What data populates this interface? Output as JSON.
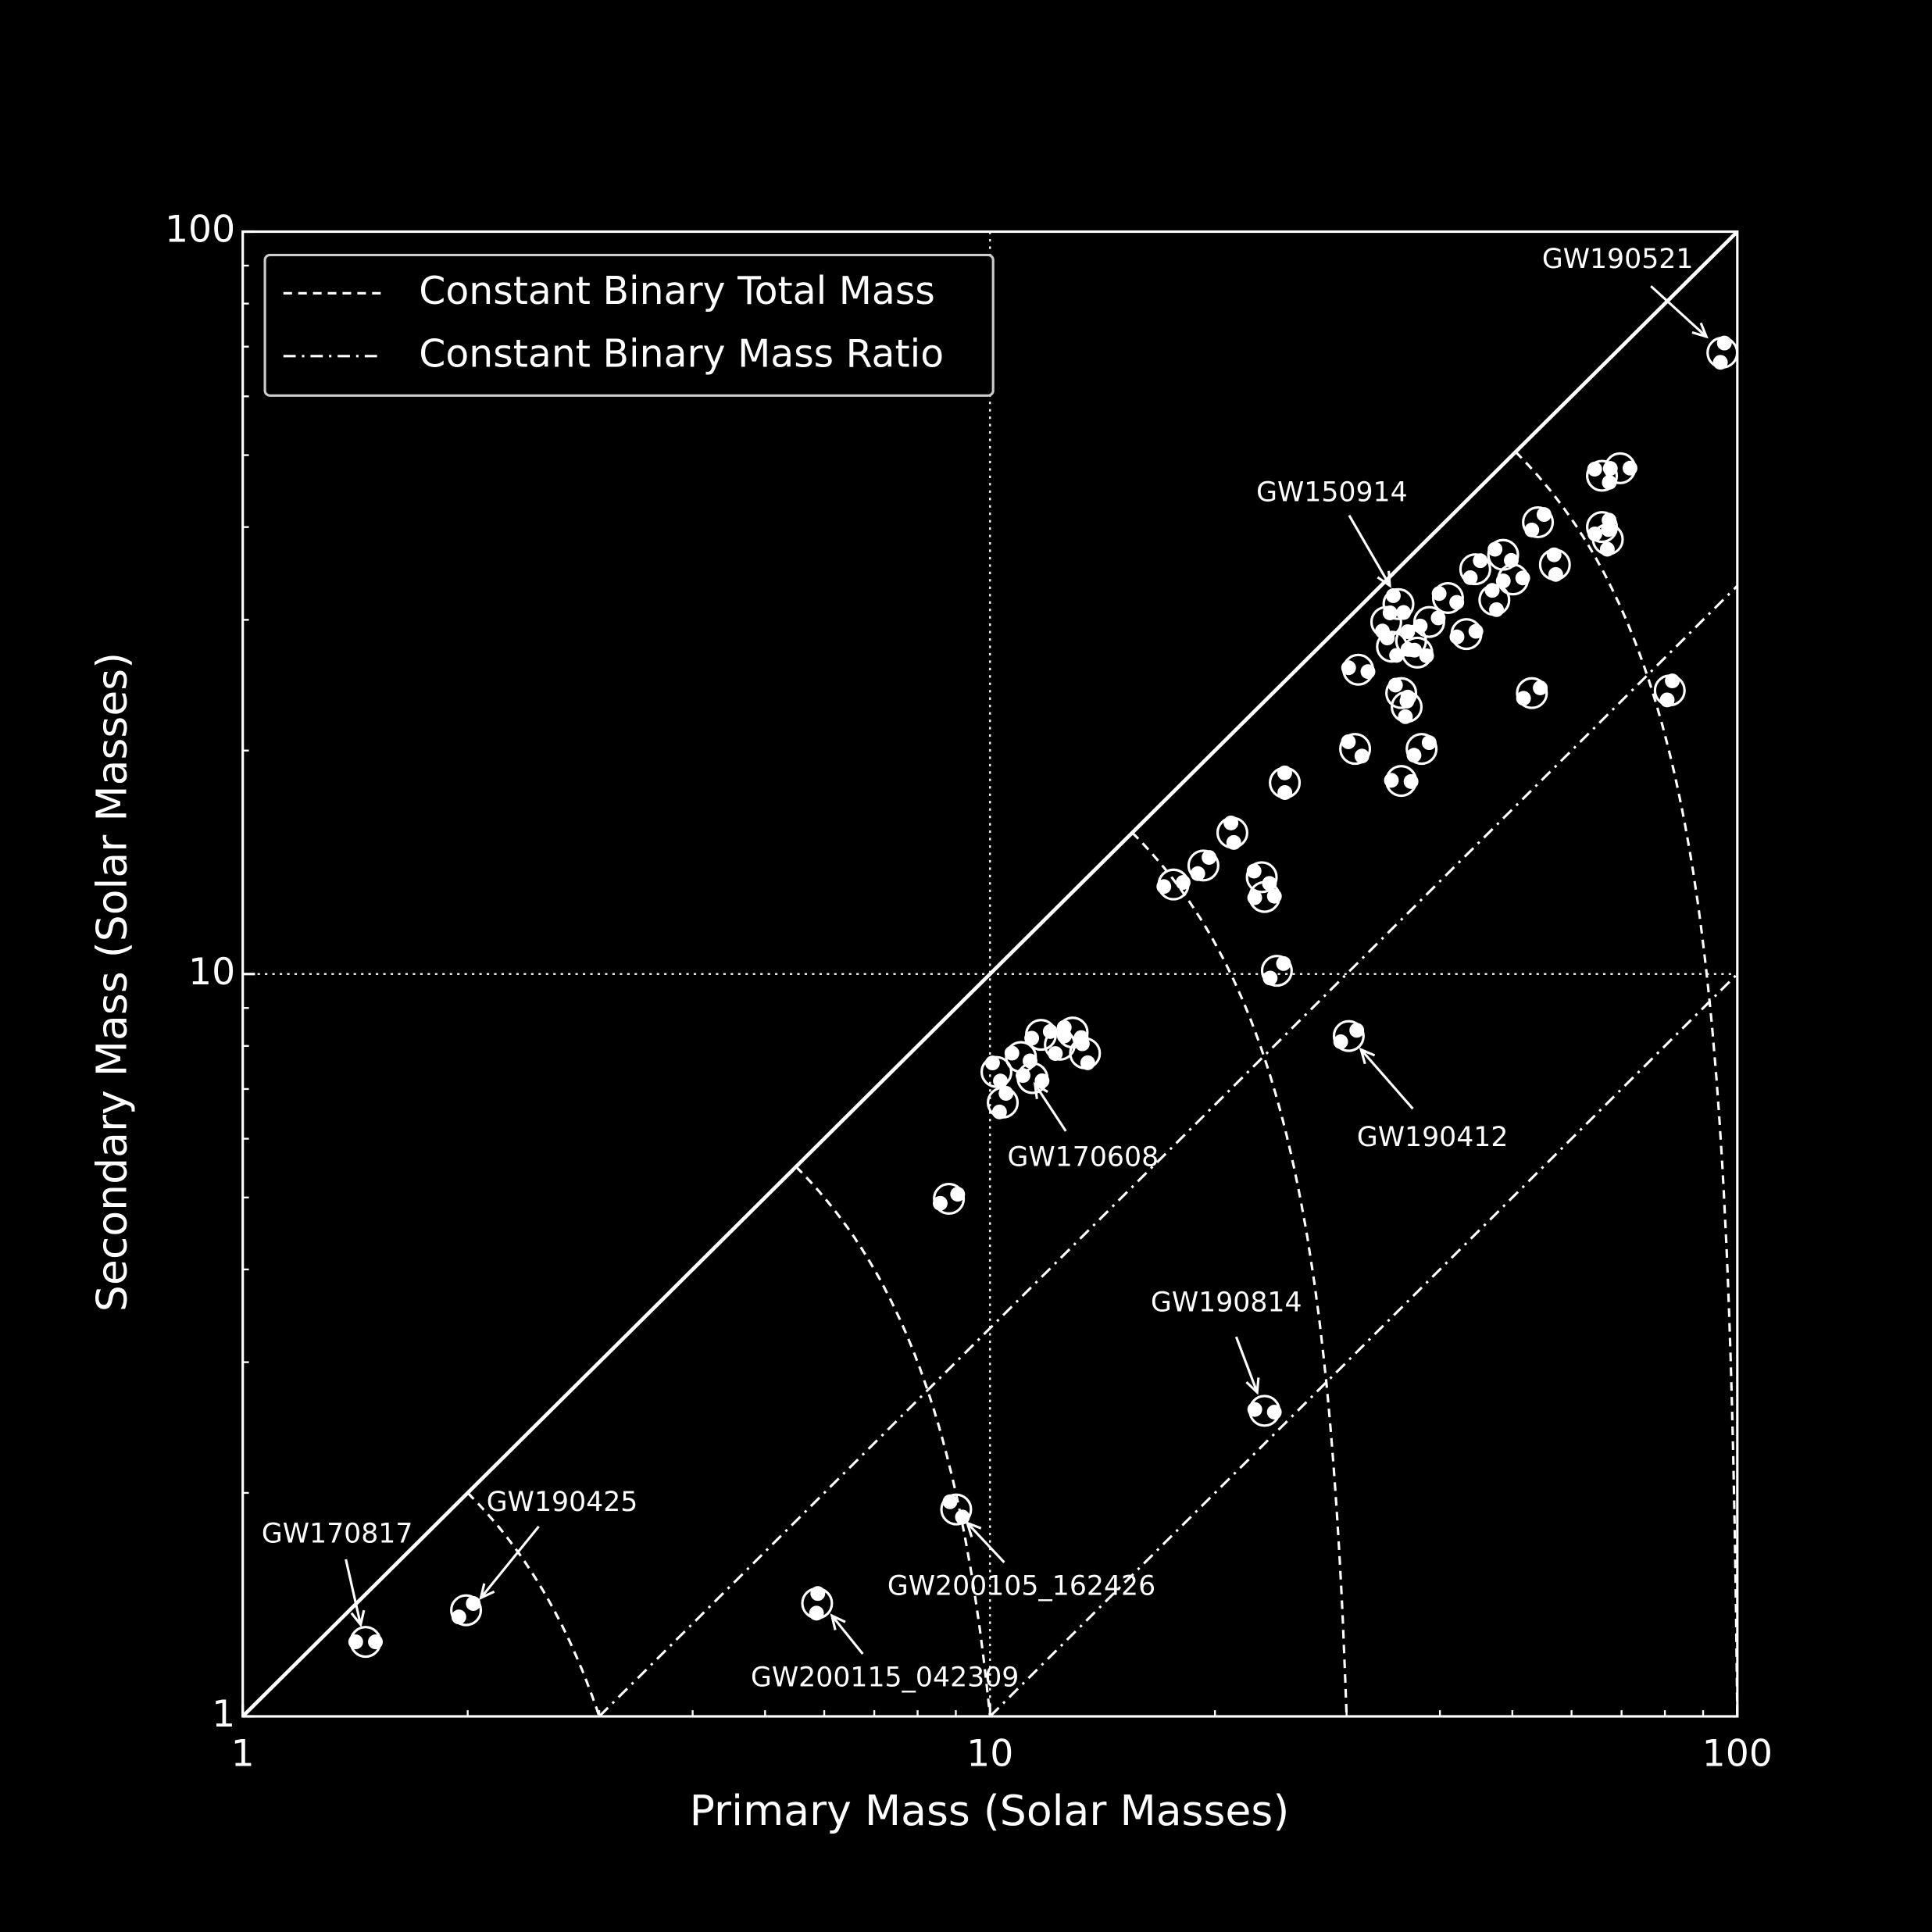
{
  "chart_data": {
    "type": "scatter",
    "xlabel": "Primary Mass (Solar Masses)",
    "ylabel": "Secondary Mass (Solar Masses)",
    "xlim": [
      1,
      100
    ],
    "ylim": [
      1,
      100
    ],
    "xticks": [
      1,
      10,
      100
    ],
    "yticks": [
      1,
      10,
      100
    ],
    "log_x": true,
    "log_y": true,
    "grid": true,
    "color": "#ffffff",
    "legend_loc": "upper left",
    "legend": [
      "Constant Binary Total Mass",
      "Constant Binary Mass Ratio"
    ],
    "total_mass_lines": [
      4,
      11,
      31,
      101
    ],
    "mass_ratio_lines": [
      3,
      10
    ],
    "x": [
      1.46,
      1.99,
      5.87,
      9.01,
      23.3,
      30.2,
      95.5,
      35.2,
      11.4,
      8.81,
      10.4,
      10.2,
      11.0,
      11.7,
      12.4,
      13.4,
      12.9,
      17.6,
      19.3,
      21.1,
      23.1,
      23.3,
      24.2,
      24.8,
      30.8,
      35.5,
      37.8,
      36.1,
      35.5,
      31.1,
      53.1,
      81.2,
      34.5,
      37.3,
      38.7,
      33.9,
      36.6,
      41.0,
      43.4,
      44.6,
      47.3,
      48.6,
      50.1,
      54.1,
      57.0,
      65.9,
      69.7,
      65.9,
      67.1
    ],
    "y": [
      1.26,
      1.39,
      1.42,
      1.9,
      2.58,
      8.25,
      68.7,
      31.5,
      7.24,
      4.98,
      6.71,
      7.38,
      7.73,
      8.28,
      8.03,
      7.82,
      8.34,
      13.2,
      14.0,
      15.5,
      13.5,
      12.7,
      10.1,
      18.1,
      20.1,
      18.2,
      20.1,
      22.9,
      23.9,
      25.7,
      23.9,
      24.1,
      27.6,
      27.1,
      29.8,
      29.8,
      28.1,
      32.1,
      28.7,
      35.1,
      31.9,
      36.7,
      34.0,
      40.6,
      35.6,
      46.9,
      48.0,
      40.0,
      38.5
    ],
    "labels": [
      "GW170817",
      "GW190425",
      "GW200115_042309",
      "GW200105_162426",
      "GW190814",
      "GW190412",
      "GW190521",
      "GW150914",
      "GW170608",
      null,
      null,
      null,
      null,
      null,
      null,
      null,
      null,
      null,
      null,
      null,
      null,
      null,
      null,
      null,
      null,
      null,
      null,
      null,
      null,
      null,
      null,
      null,
      null,
      null,
      null,
      null,
      null,
      null,
      null,
      null,
      null,
      null,
      null,
      null,
      null,
      null,
      null,
      null,
      null
    ]
  }
}
